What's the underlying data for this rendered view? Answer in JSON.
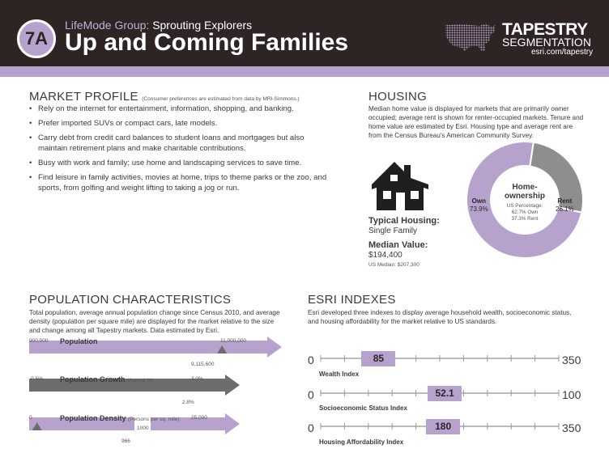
{
  "header": {
    "badge": "7A",
    "group_prefix": "LifeMode Group:",
    "group_name": "Sprouting Explorers",
    "title": "Up and Coming Families",
    "logo_line1": "TAPESTRY",
    "logo_line2": "SEGMENTATION",
    "logo_url": "esri.com/tapestry"
  },
  "market_profile": {
    "title": "MARKET PROFILE",
    "note": "(Consumer preferences are estimated from data by MRI-Simmons.)",
    "bullets": [
      "Rely on the internet for entertainment, information, shopping, and banking.",
      "Prefer imported SUVs or compact cars, late models.",
      "Carry debt from credit card balances to student loans and mortgages but also maintain retirement plans and make charitable contributions.",
      "Busy with work and family; use home and landscaping services to save time.",
      "Find leisure in family activities, movies at home, trips to theme parks or the zoo, and sports, from golfing and weight lifting to taking a jog or run."
    ]
  },
  "housing": {
    "title": "HOUSING",
    "description": "Median home value is displayed for markets that are primarily owner occupied; average rent is shown for renter-occupied markets. Tenure and home value are estimated by Esri. Housing type and average rent are from the Census Bureau's American Community Survey.",
    "typical_label": "Typical Housing:",
    "typical_value": "Single Family",
    "median_label": "Median Value:",
    "median_value": "$194,400",
    "us_median": "US Median: $207,300",
    "donut": {
      "center_title_1": "Home-",
      "center_title_2": "ownership",
      "us_line1": "US Percentage:",
      "us_line2": "62.7% Own",
      "us_line3": "37.3% Rent",
      "own_label": "Own",
      "own_value": "73.9%",
      "rent_label": "Rent",
      "rent_value": "26.1%",
      "own_pct": 73.9,
      "rent_pct": 26.1,
      "own_color": "#b6a2cc",
      "rent_color": "#8e8e8e"
    }
  },
  "population": {
    "title": "POPULATION CHARACTERISTICS",
    "description": "Total population, average annual population change since Census 2010, and average density (population per square mile) are displayed for the market relative to the size and change among all Tapestry markets. Data estimated by Esri.",
    "bars": [
      {
        "label": "Population",
        "unit": "",
        "min": "900,000",
        "max": "11,000,000",
        "marker": "9,115,600",
        "fraction": 0.81,
        "color": "#b6a2cc"
      },
      {
        "label": "Population Growth",
        "unit": "(Annual %)",
        "min": "-0.5%",
        "max": "3.0%",
        "marker": "2.8%",
        "fraction": 0.94,
        "color": "#6d6d6d"
      },
      {
        "label": "Population Density",
        "unit": "(Persons per sq. mile)",
        "min": "0",
        "max": "25,000",
        "marker": "966",
        "inline_value": "1000",
        "fraction": 0.04,
        "color": "#b6a2cc"
      }
    ]
  },
  "indexes": {
    "title": "ESRI INDEXES",
    "description": "Esri developed three indexes to display average household wealth, socioeconomic status, and housing affordability for the market relative to US standards.",
    "items": [
      {
        "name": "Wealth Index",
        "min": "0",
        "max": "350",
        "value": "85",
        "fraction": 0.243
      },
      {
        "name": "Socioeconomic Status Index",
        "min": "0",
        "max": "100",
        "value": "52.1",
        "fraction": 0.521
      },
      {
        "name": "Housing Affordability Index",
        "min": "0",
        "max": "350",
        "value": "180",
        "fraction": 0.514
      }
    ],
    "box_color": "#b6a2cc"
  }
}
